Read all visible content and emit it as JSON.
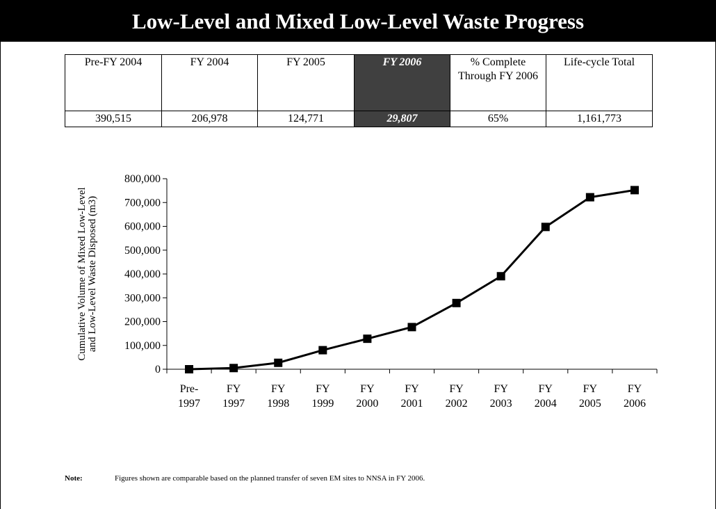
{
  "title": "Low-Level and Mixed Low-Level Waste Progress",
  "table": {
    "headers": [
      "Pre-FY 2004",
      "FY 2004",
      "FY 2005",
      "FY 2006",
      "% Complete Through FY 2006",
      "Life-cycle Total"
    ],
    "rows": [
      [
        "390,515",
        "206,978",
        "124,771",
        "29,807",
        "65%",
        "1,161,773"
      ]
    ],
    "highlight_column": 3
  },
  "chart_data": {
    "type": "line",
    "ylabel": [
      "Cumulative Volume of Mixed Low-Level",
      "and Low-Level Waste  Disposed (m3)"
    ],
    "categories": [
      "Pre- 1997",
      "FY 1997",
      "FY 1998",
      "FY 1999",
      "FY 2000",
      "FY 2001",
      "FY 2002",
      "FY 2003",
      "FY 2004",
      "FY 2005",
      "FY 2006"
    ],
    "values": [
      0,
      5000,
      27000,
      80000,
      128000,
      177000,
      278000,
      390515,
      597493,
      722264,
      752071
    ],
    "color": "#000000",
    "marker": "square",
    "ylim": [
      0,
      800000
    ],
    "yticks": [
      0,
      {
        "value": 100000,
        "label": "100,000"
      },
      {
        "value": 200000,
        "label": "200,000"
      },
      {
        "value": 300000,
        "label": "300,000"
      },
      {
        "value": 400000,
        "label": "400,000"
      },
      {
        "value": 500000,
        "label": "500,000"
      },
      {
        "value": 600000,
        "label": "600,000"
      },
      {
        "value": 700000,
        "label": "700,000"
      },
      {
        "value": 800000,
        "label": "800,000"
      }
    ]
  },
  "note": {
    "label": "Note:",
    "text": "Figures shown are comparable based on the planned transfer of seven EM sites to NNSA in FY 2006."
  }
}
